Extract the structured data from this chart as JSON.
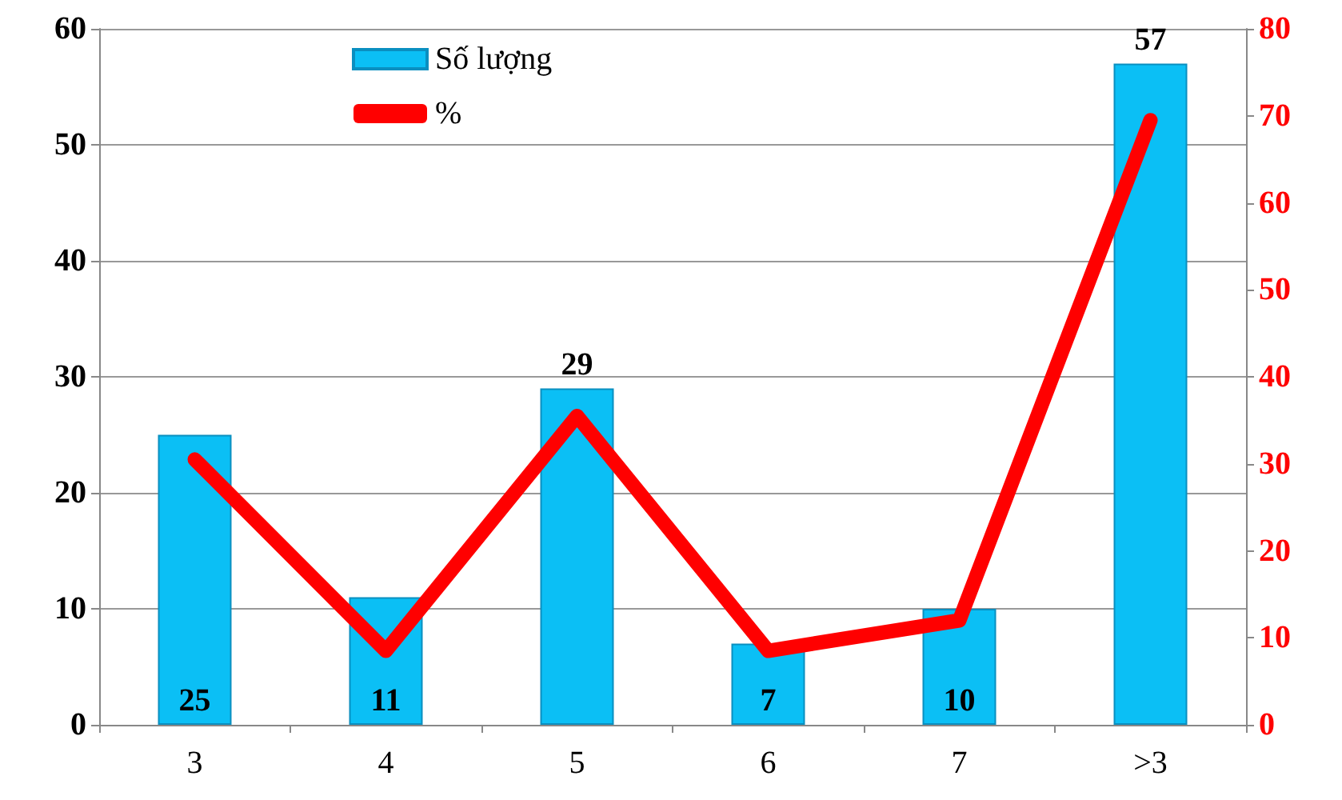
{
  "chart_data": {
    "type": "bar",
    "categories": [
      "3",
      "4",
      "5",
      "6",
      "7",
      ">3"
    ],
    "series": [
      {
        "name": "Số lượng",
        "color": "#0bbff5",
        "values": [
          25,
          11,
          29,
          7,
          10,
          57
        ]
      },
      {
        "name": "%",
        "type": "line",
        "axis": "y2",
        "color": "#ff0000",
        "values": [
          30.5,
          8.5,
          35.5,
          8.5,
          12,
          69.5
        ]
      }
    ],
    "ylim": [
      0,
      60
    ],
    "yticks": [
      0,
      10,
      20,
      30,
      40,
      50,
      60
    ],
    "y2lim": [
      0,
      80
    ],
    "y2ticks": [
      0,
      10,
      20,
      30,
      40,
      50,
      60,
      70,
      80
    ],
    "grid": "y",
    "legend": "top left",
    "line_style": "solid",
    "value_labels": [
      "25",
      "11",
      "29",
      "7",
      "10",
      "57"
    ]
  }
}
